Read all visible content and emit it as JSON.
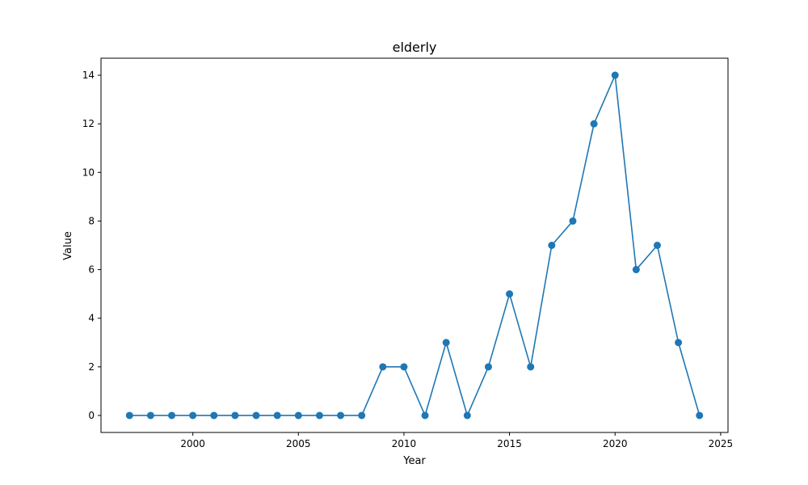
{
  "chart_data": {
    "type": "line",
    "title": "elderly",
    "xlabel": "Year",
    "ylabel": "Value",
    "xlim": [
      1995.65,
      2025.35
    ],
    "ylim": [
      -0.7,
      14.7
    ],
    "xticks": [
      2000,
      2005,
      2010,
      2015,
      2020,
      2025
    ],
    "yticks": [
      0,
      2,
      4,
      6,
      8,
      10,
      12,
      14
    ],
    "grid": false,
    "legend": false,
    "series": [
      {
        "color": "#1f77b4",
        "marker": "circle",
        "x": [
          1997,
          1998,
          1999,
          2000,
          2001,
          2002,
          2003,
          2004,
          2005,
          2006,
          2007,
          2008,
          2009,
          2010,
          2011,
          2012,
          2013,
          2014,
          2015,
          2016,
          2017,
          2018,
          2019,
          2020,
          2021,
          2022,
          2023,
          2024
        ],
        "y": [
          0,
          0,
          0,
          0,
          0,
          0,
          0,
          0,
          0,
          0,
          0,
          0,
          2,
          2,
          0,
          3,
          0,
          2,
          5,
          2,
          7,
          8,
          12,
          14,
          6,
          7,
          3,
          0
        ]
      }
    ]
  }
}
